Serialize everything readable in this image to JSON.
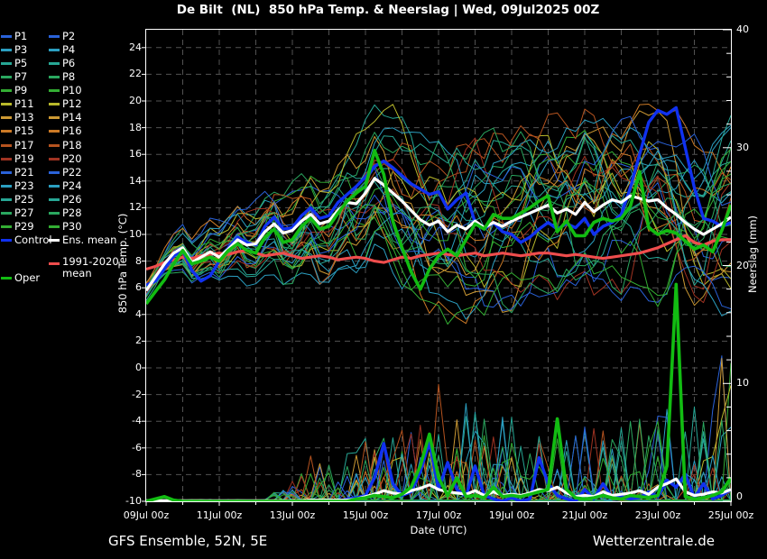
{
  "title": "De Bilt  (NL)  850 hPa Temp. & Neerslag | Wed, 09Jul2025 00Z",
  "footer": {
    "left": "GFS Ensemble, 52N, 5E",
    "right": "Wetterzentrale.de"
  },
  "colors": {
    "background": "#000000",
    "frame": "#ffffff",
    "grid": "#525252",
    "text": "#ffffff",
    "control": "#1031f0",
    "ens_mean": "#ffffff",
    "climate_mean": "#ef4d4d",
    "oper": "#12bc12",
    "member_palette": [
      "#2a62d9",
      "#2b9fc1",
      "#27a795",
      "#2aa75f",
      "#33ad33",
      "#b9b92b",
      "#cc9933",
      "#cc7a26",
      "#b5531f",
      "#a03322"
    ]
  },
  "legend": {
    "member_labels": [
      "P1",
      "P2",
      "P3",
      "P4",
      "P5",
      "P6",
      "P7",
      "P8",
      "P9",
      "P10",
      "P11",
      "P12",
      "P13",
      "P14",
      "P15",
      "P16",
      "P17",
      "P18",
      "P19",
      "P20",
      "P21",
      "P22",
      "P23",
      "P24",
      "P25",
      "P26",
      "P27",
      "P28",
      "P29",
      "P30"
    ],
    "control_label": "Control",
    "ens_mean_label": "Ens. mean",
    "climate_label_line1": "1991-2020",
    "climate_label_line2": "mean",
    "oper_label": "Oper"
  },
  "chart_data": {
    "type": "line",
    "title": "De Bilt (NL) 850 hPa Temp. & Neerslag",
    "run": "Wed, 09Jul2025 00Z",
    "x_axis": {
      "label": "Date (UTC)",
      "tick_labels": [
        "09Jul 00z",
        "11Jul 00z",
        "13Jul 00z",
        "15Jul 00z",
        "17Jul 00z",
        "19Jul 00z",
        "21Jul 00z",
        "23Jul 00z",
        "25Jul 00z"
      ],
      "days_total": 16,
      "step_hours": 6
    },
    "y_left": {
      "label": "850 hPa Temp. (°C)",
      "min": -10,
      "max": 24,
      "tick_step": 2
    },
    "y_right": {
      "label": "Neerslag (mm)",
      "min": 0,
      "max": 40,
      "tick_step": 10,
      "minor_step": 2
    },
    "grid": true,
    "legend_position": "top-left",
    "series": {
      "ens_mean_temp": [
        5.8,
        6.8,
        7.8,
        8.6,
        9.0,
        7.9,
        8.3,
        8.7,
        8.3,
        8.9,
        9.6,
        9.2,
        9.3,
        10.2,
        10.8,
        10.1,
        10.3,
        11.0,
        11.5,
        10.8,
        11.0,
        11.8,
        12.4,
        12.3,
        13.1,
        14.2,
        13.7,
        13.1,
        12.5,
        11.8,
        11.1,
        10.7,
        11.0,
        10.2,
        10.7,
        10.4,
        11.0,
        10.5,
        10.9,
        10.6,
        11.0,
        11.3,
        11.6,
        11.9,
        12.2,
        11.6,
        11.9,
        11.5,
        12.4,
        11.7,
        12.2,
        12.6,
        12.4,
        12.9,
        12.7,
        12.5,
        12.6,
        12.0,
        11.5,
        10.9,
        10.4,
        10.0,
        10.4,
        10.8,
        11.3
      ],
      "control_temp": [
        6.2,
        6.5,
        7.4,
        8.4,
        8.8,
        7.3,
        6.5,
        6.9,
        8.0,
        9.0,
        9.8,
        9.4,
        9.2,
        10.6,
        11.3,
        10.4,
        10.5,
        11.4,
        12.0,
        11.2,
        11.4,
        12.4,
        13.0,
        13.6,
        14.3,
        15.1,
        15.5,
        15.0,
        14.4,
        13.8,
        13.4,
        13.0,
        13.2,
        11.9,
        12.6,
        13.1,
        10.9,
        10.4,
        10.9,
        10.2,
        10.0,
        9.4,
        9.8,
        10.4,
        10.9,
        10.4,
        10.8,
        10.5,
        11.2,
        10.0,
        10.6,
        10.9,
        11.5,
        13.5,
        16.0,
        18.4,
        19.3,
        19.0,
        19.5,
        16.5,
        13.5,
        11.2,
        11.0,
        10.6,
        10.9
      ],
      "oper_temp": [
        4.8,
        5.7,
        6.6,
        7.8,
        8.8,
        7.8,
        8.0,
        8.3,
        8.0,
        8.8,
        9.3,
        8.8,
        8.6,
        9.8,
        10.4,
        9.4,
        9.6,
        10.6,
        11.2,
        10.4,
        10.6,
        11.6,
        12.5,
        13.1,
        13.6,
        16.3,
        14.5,
        11.0,
        9.0,
        7.2,
        5.9,
        7.4,
        8.4,
        8.9,
        8.4,
        9.6,
        10.8,
        10.4,
        11.5,
        11.2,
        11.2,
        11.6,
        12.0,
        12.5,
        12.9,
        10.2,
        11.0,
        9.9,
        9.9,
        10.9,
        11.2,
        11.0,
        11.2,
        12.1,
        14.7,
        10.5,
        10.0,
        10.3,
        10.1,
        9.5,
        8.9,
        9.2,
        8.7,
        10.3,
        12.2
      ],
      "climate_mean_temp": [
        7.4,
        7.6,
        7.9,
        8.1,
        8.3,
        8.2,
        8.4,
        8.5,
        8.6,
        8.5,
        8.7,
        8.8,
        8.6,
        8.4,
        8.5,
        8.6,
        8.4,
        8.2,
        8.3,
        8.4,
        8.3,
        8.1,
        8.2,
        8.3,
        8.2,
        8.0,
        7.9,
        8.1,
        8.3,
        8.2,
        8.4,
        8.5,
        8.6,
        8.5,
        8.4,
        8.5,
        8.6,
        8.4,
        8.5,
        8.6,
        8.5,
        8.4,
        8.5,
        8.6,
        8.6,
        8.5,
        8.4,
        8.5,
        8.4,
        8.3,
        8.2,
        8.3,
        8.4,
        8.5,
        8.6,
        8.8,
        9.0,
        9.3,
        9.6,
        9.9,
        9.4,
        9.2,
        9.5,
        9.6,
        9.6
      ],
      "ens_mean_precip": [
        0.05,
        0.05,
        0.05,
        0.05,
        0.05,
        0.05,
        0.05,
        0.05,
        0.05,
        0.05,
        0.05,
        0.05,
        0.05,
        0.05,
        0.05,
        0.05,
        0.05,
        0.05,
        0.1,
        0.1,
        0.1,
        0.1,
        0.1,
        0.2,
        0.4,
        0.6,
        0.9,
        0.7,
        0.6,
        0.9,
        1.1,
        1.4,
        1.0,
        0.8,
        0.7,
        0.6,
        0.9,
        0.5,
        0.8,
        0.5,
        0.6,
        0.5,
        0.7,
        1.0,
        0.9,
        1.2,
        0.7,
        0.4,
        0.5,
        0.4,
        0.8,
        0.5,
        0.6,
        0.7,
        0.9,
        0.6,
        1.2,
        1.5,
        1.9,
        0.8,
        0.5,
        0.6,
        0.8,
        0.7,
        1.0
      ],
      "control_precip": [
        0,
        0,
        0,
        0,
        0,
        0,
        0,
        0,
        0,
        0,
        0,
        0,
        0,
        0,
        0,
        0,
        0,
        0,
        0,
        0,
        0,
        0,
        0.2,
        0.3,
        0.5,
        2.0,
        4.9,
        1.5,
        0.5,
        0.8,
        2.5,
        5.0,
        1.0,
        3.3,
        1.0,
        0.4,
        3.0,
        0.5,
        0.2,
        0,
        0.3,
        0,
        0.2,
        3.7,
        1.5,
        0.5,
        0.2,
        0,
        1.0,
        0.2,
        1.5,
        0.3,
        0.4,
        0.2,
        0.3,
        0.8,
        0.4,
        1.8,
        1.2,
        2.3,
        0.3,
        1.5,
        0.2,
        0.5,
        1.0
      ],
      "oper_precip": [
        0,
        0.2,
        0.4,
        0.1,
        0,
        0,
        0,
        0,
        0,
        0,
        0,
        0,
        0,
        0,
        0,
        0,
        0,
        0,
        0,
        0,
        0,
        0,
        0,
        0.2,
        0.3,
        0.5,
        0.4,
        0.3,
        0.6,
        1.2,
        3.0,
        5.7,
        2.0,
        0.5,
        2.0,
        0.4,
        0.5,
        0.3,
        1.2,
        0.4,
        0.5,
        0.4,
        0.6,
        0.8,
        1.0,
        7.0,
        1.0,
        0.3,
        0.2,
        0.3,
        0.5,
        0.3,
        0.2,
        0.5,
        0.4,
        0.3,
        0.5,
        3.0,
        18.4,
        0.4,
        0.2,
        0.3,
        0.5,
        0.8,
        2.0
      ]
    },
    "members": {
      "count": 30,
      "seed": 11,
      "spread_temp_12h": [
        0.9,
        1.25,
        1.6,
        1.95,
        2.3,
        2.65,
        3.0,
        3.3,
        3.6,
        3.9,
        4.2,
        4.6,
        5.0,
        5.25,
        5.5,
        5.75,
        6.0,
        6.0,
        6.0,
        5.9,
        5.8,
        5.9,
        6.0,
        6.1,
        6.2,
        6.35,
        6.5,
        6.6,
        6.8,
        6.8,
        6.8,
        6.9,
        7.0
      ],
      "precip_max_12h": [
        0,
        0,
        0,
        0,
        0,
        0,
        0.3,
        0.5,
        1.5,
        4,
        3,
        4,
        5,
        5.5,
        6,
        8,
        10,
        9,
        8,
        7.5,
        7,
        6,
        5,
        5.5,
        6,
        6,
        6,
        7,
        8,
        8.5,
        9,
        11,
        13
      ]
    }
  }
}
